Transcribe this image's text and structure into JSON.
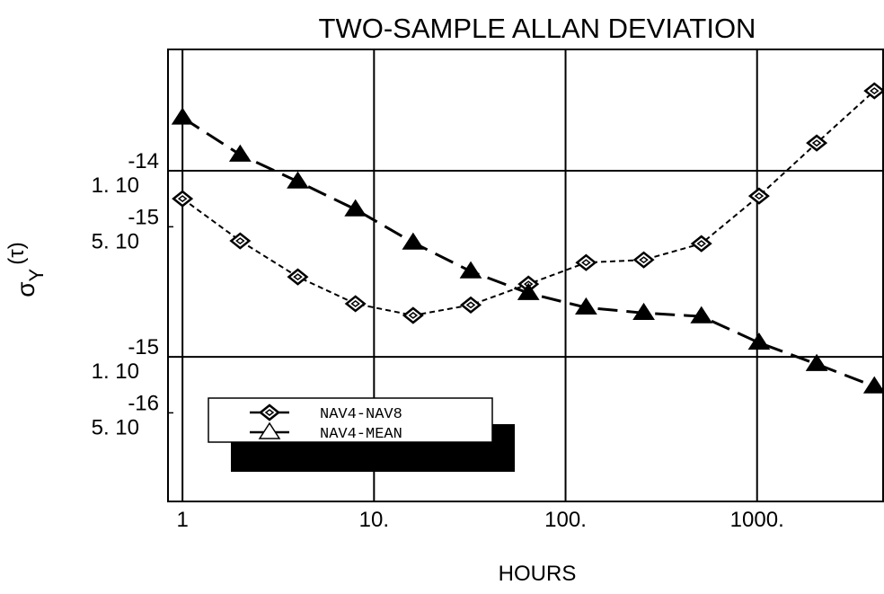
{
  "chart_data": {
    "type": "line",
    "title": "TWO-SAMPLE ALLAN DEVIATION",
    "x_label": "HOURS",
    "y_label": {
      "symbol": "σ",
      "subscript": "Y",
      "argument": "(τ)"
    },
    "log_x": true,
    "log_y": true,
    "grid": true,
    "legend": "lower left",
    "x": [
      1,
      2,
      4,
      8,
      16,
      32,
      64,
      128,
      256,
      512,
      1024,
      2048,
      4096
    ],
    "series": [
      {
        "name": "NAV4-NAV8",
        "color": "#000000",
        "marker": "diamond",
        "dash": "short",
        "values": [
          7.08e-15,
          4.2e-15,
          2.69e-15,
          1.93e-15,
          1.67e-15,
          1.9e-15,
          2.46e-15,
          3.21e-15,
          3.32e-15,
          4.06e-15,
          7.32e-15,
          1.41e-14,
          2.69e-14
        ]
      },
      {
        "name": "NAV4-MEAN",
        "color": "#000000",
        "marker": "triangle",
        "dash": "long",
        "values": [
          1.93e-14,
          1.22e-14,
          8.75e-15,
          6.2e-15,
          4.11e-15,
          2.88e-15,
          2.2e-15,
          1.84e-15,
          1.72e-15,
          1.65e-15,
          1.19e-15,
          9.14e-16,
          6.93e-16
        ]
      }
    ],
    "xlim": [
      0.84,
      4550
    ],
    "xticks": [
      1,
      {
        "value": 10,
        "label": "10."
      },
      {
        "value": 100,
        "label": "100."
      },
      {
        "value": 1000,
        "label": "1000."
      }
    ],
    "ylim": [
      1.67e-16,
      4.49e-14
    ],
    "yticks": [
      {
        "value": 1e-14,
        "label": "1. 10",
        "exponent": "-14"
      },
      {
        "value": 5e-15,
        "label": "5. 10",
        "exponent": "-15"
      },
      {
        "value": 1e-15,
        "label": "1. 10",
        "exponent": "-15"
      },
      {
        "value": 5e-16,
        "label": "5. 10",
        "exponent": "-16"
      }
    ]
  }
}
